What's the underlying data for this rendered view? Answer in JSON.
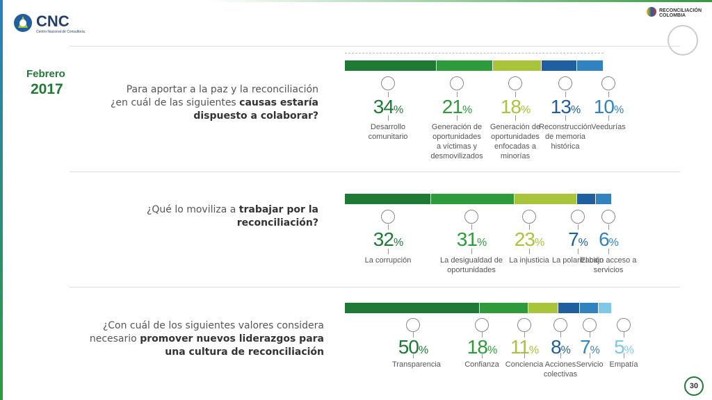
{
  "logo": {
    "name": "CNC",
    "subtitle": "Centro Nacional de Consultoría"
  },
  "partner": "RECONCILIACIÓN COLOMBIA",
  "month": "Febrero",
  "year": "2017",
  "page": "30",
  "chart_data": [
    {
      "type": "stacked-bar",
      "title": {
        "text": "Para aportar a la paz y la reconciliación ¿en cuál de las siguientes ",
        "bold": "causas estaría dispuesto a colaborar?"
      },
      "unit": "%",
      "categories": [
        "Desarrollo comunitario",
        "Generación de oportunidades a víctimas y desmovilizados",
        "Generación de oportunidades enfocadas a minorías",
        "Reconstrucción de memoria histórica",
        "Veedurías"
      ],
      "values": [
        34,
        21,
        18,
        13,
        10
      ],
      "colors": [
        "#1e7a34",
        "#2e9a3c",
        "#a8c43a",
        "#1f5fa0",
        "#3282c0"
      ]
    },
    {
      "type": "stacked-bar",
      "title": {
        "text": "¿Qué lo moviliza a ",
        "bold": "trabajar por la reconciliación?"
      },
      "unit": "%",
      "categories": [
        "La corrupción",
        "La desigualdad de oportunidades",
        "La injusticia",
        "La polarización",
        "El bajo acceso a servicios"
      ],
      "values": [
        32,
        31,
        23,
        7,
        6
      ],
      "colors": [
        "#1e7a34",
        "#2e9a3c",
        "#a8c43a",
        "#1f5fa0",
        "#3282c0"
      ]
    },
    {
      "type": "stacked-bar",
      "title": {
        "text": "¿Con cuál de los siguientes valores considera necesario ",
        "bold": "promover nuevos liderazgos para una cultura de reconciliación"
      },
      "unit": "%",
      "categories": [
        "Transparencia",
        "Confianza",
        "Conciencia",
        "Acciones colectivas",
        "Servicio",
        "Empatía"
      ],
      "values": [
        50,
        18,
        11,
        8,
        7,
        5
      ],
      "colors": [
        "#1e7a34",
        "#2e9a3c",
        "#a8c43a",
        "#1f5fa0",
        "#3282c0",
        "#7ec8e8"
      ]
    }
  ]
}
